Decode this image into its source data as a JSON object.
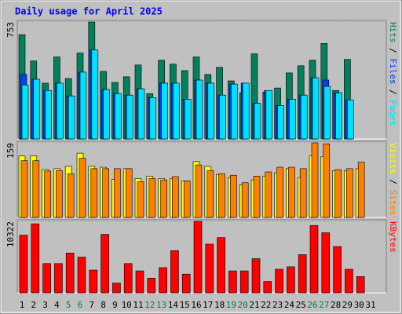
{
  "chart_data": [
    {
      "type": "bar",
      "title": "Daily usage for April 2025",
      "ylim": [
        0,
        753
      ],
      "yticks": [
        753
      ],
      "legend_separator": " / ",
      "series": [
        {
          "name": "Hits",
          "color": "#00805c",
          "values": [
            671,
            502,
            359,
            528,
            389,
            553,
            753,
            435,
            364,
            400,
            476,
            292,
            507,
            482,
            440,
            528,
            415,
            461,
            374,
            297,
            548,
            302,
            328,
            425,
            471,
            507,
            615,
            312,
            512,
            null,
            null
          ]
        },
        {
          "name": "Files",
          "color": "#0040ff",
          "values": [
            415,
            384,
            312,
            359,
            277,
            430,
            574,
            318,
            292,
            282,
            323,
            266,
            359,
            359,
            256,
            379,
            359,
            282,
            353,
            359,
            230,
            312,
            215,
            256,
            282,
            394,
            379,
            297,
            251,
            null,
            null
          ]
        },
        {
          "name": "Pages",
          "color": "#00e0ff",
          "values": [
            348,
            384,
            312,
            359,
            277,
            430,
            574,
            318,
            292,
            282,
            323,
            266,
            359,
            359,
            256,
            379,
            359,
            282,
            353,
            359,
            230,
            312,
            215,
            256,
            282,
            394,
            338,
            297,
            251,
            null,
            null
          ]
        }
      ]
    },
    {
      "type": "bar",
      "ylim": [
        0,
        159
      ],
      "yticks": [
        159
      ],
      "legend_separator": " / ",
      "series": [
        {
          "name": "Visits",
          "color": "#ffff00",
          "values": [
            131,
            131,
            102,
            104,
            109,
            137,
            109,
            107,
            81,
            104,
            83,
            88,
            83,
            83,
            78,
            119,
            109,
            92,
            85,
            69,
            80,
            88,
            95,
            104,
            85,
            131,
            130,
            100,
            100,
            104,
            null
          ]
        },
        {
          "name": "Sites",
          "color": "#ff8000",
          "values": [
            121,
            121,
            99,
            100,
            93,
            126,
            104,
            104,
            104,
            104,
            76,
            83,
            80,
            87,
            78,
            112,
            100,
            93,
            90,
            74,
            88,
            97,
            107,
            107,
            104,
            159,
            157,
            102,
            104,
            118,
            null
          ]
        }
      ]
    },
    {
      "type": "bar",
      "ylim": [
        0,
        10322
      ],
      "yticks": [
        10322
      ],
      "categories": [
        "1",
        "2",
        "3",
        "4",
        "5",
        "6",
        "7",
        "8",
        "9",
        "10",
        "11",
        "12",
        "13",
        "14",
        "15",
        "16",
        "17",
        "18",
        "19",
        "20",
        "21",
        "22",
        "23",
        "24",
        "25",
        "26",
        "27",
        "28",
        "29",
        "30",
        "31"
      ],
      "weekend_categories": [
        "5",
        "6",
        "12",
        "13",
        "19",
        "20",
        "26",
        "27"
      ],
      "weekend_color": "#008040",
      "series": [
        {
          "name": "KBytes",
          "color": "#ff0000",
          "values": [
            8328,
            9970,
            4222,
            4222,
            5748,
            5161,
            3284,
            8445,
            1408,
            4222,
            3167,
            2111,
            3636,
            6099,
            2698,
            10322,
            7038,
            7976,
            3167,
            3167,
            4926,
            1642,
            3402,
            3754,
            5513,
            9735,
            8680,
            6686,
            3402,
            2346,
            null
          ]
        }
      ]
    }
  ]
}
